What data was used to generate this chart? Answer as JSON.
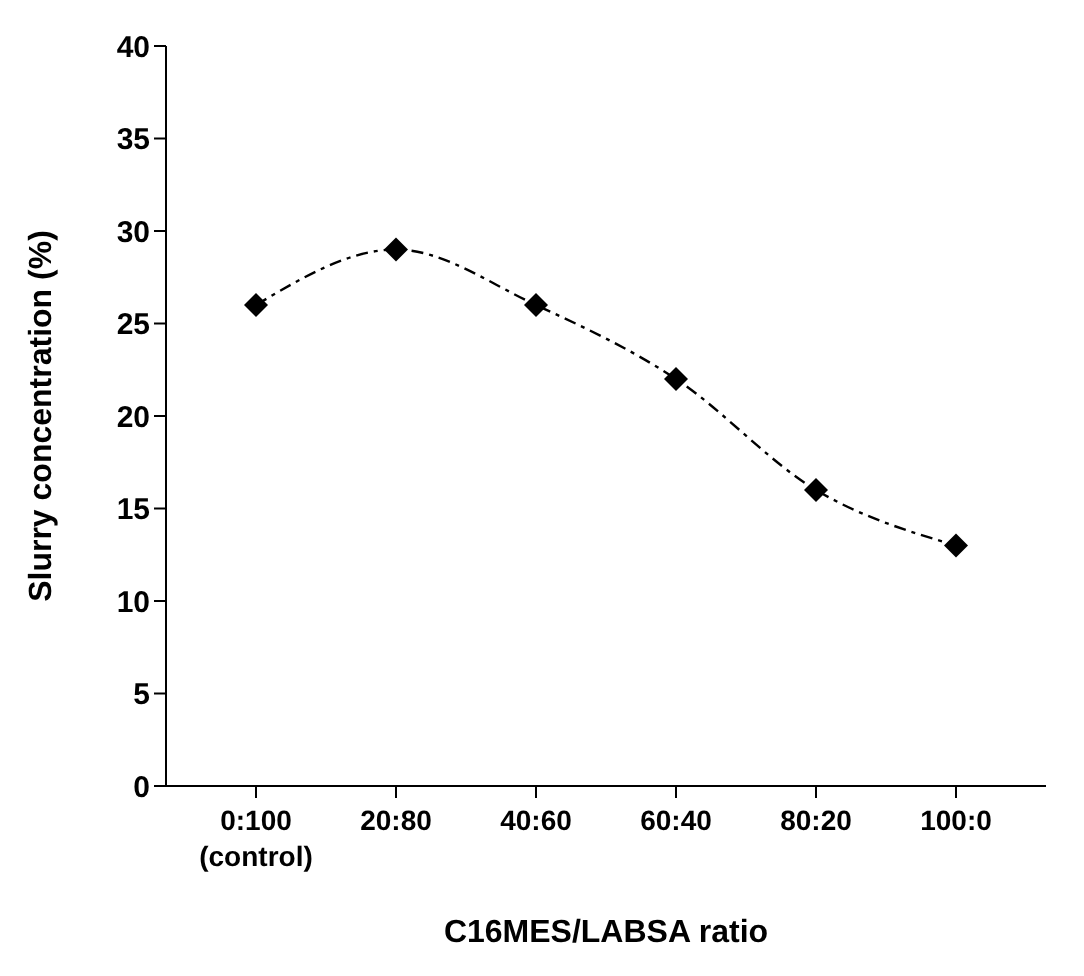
{
  "chart_data": {
    "type": "line",
    "xlabel": "C16MES/LABSA ratio",
    "ylabel": "Slurry concentration (%)",
    "categories": [
      "0:100 (control)",
      "20:80",
      "40:60",
      "60:40",
      "80:20",
      "100:0"
    ],
    "series": [
      {
        "color": "#000000",
        "values": [
          26,
          29,
          26,
          22,
          16,
          13
        ]
      }
    ],
    "ylim": [
      0,
      40
    ],
    "yticks": [
      0,
      5,
      10,
      15,
      20,
      25,
      30,
      35,
      40
    ],
    "grid": false,
    "legend": false,
    "marker": "diamond",
    "line_style": "dashed"
  }
}
